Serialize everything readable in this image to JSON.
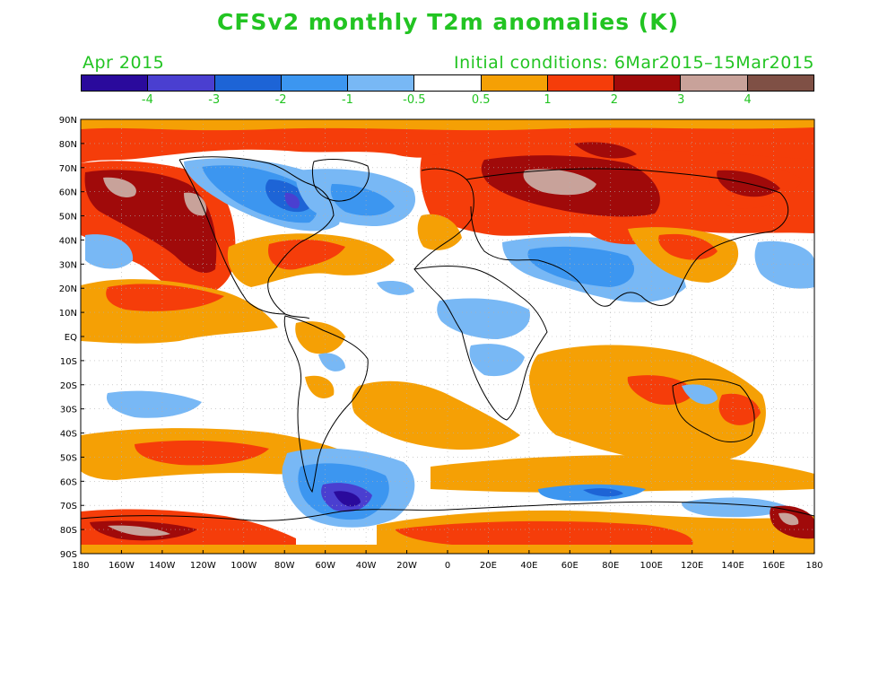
{
  "title": "CFSv2 monthly T2m anomalies (K)",
  "subtitle_left": "Apr 2015",
  "subtitle_right": "Initial conditions: 6Mar2015–15Mar2015",
  "colorbar": {
    "colors": [
      "#2a0a9c",
      "#4a3fd0",
      "#1d64d6",
      "#3c96f0",
      "#78b8f5",
      "#ffffff",
      "#f5a005",
      "#f53d0a",
      "#a00a0a",
      "#c8a29a",
      "#7f5045"
    ],
    "labels": [
      "-4",
      "-3",
      "-2",
      "-1",
      "-0.5",
      "0.5",
      "1",
      "2",
      "3",
      "4"
    ]
  },
  "axes": {
    "lat_labels": [
      "90N",
      "80N",
      "70N",
      "60N",
      "50N",
      "40N",
      "30N",
      "20N",
      "10N",
      "EQ",
      "10S",
      "20S",
      "30S",
      "40S",
      "50S",
      "60S",
      "70S",
      "80S",
      "90S"
    ],
    "lon_labels": [
      "180",
      "160W",
      "140W",
      "120W",
      "100W",
      "80W",
      "60W",
      "40W",
      "20W",
      "0",
      "20E",
      "40E",
      "60E",
      "80E",
      "100E",
      "120E",
      "140E",
      "160E",
      "180"
    ]
  }
}
